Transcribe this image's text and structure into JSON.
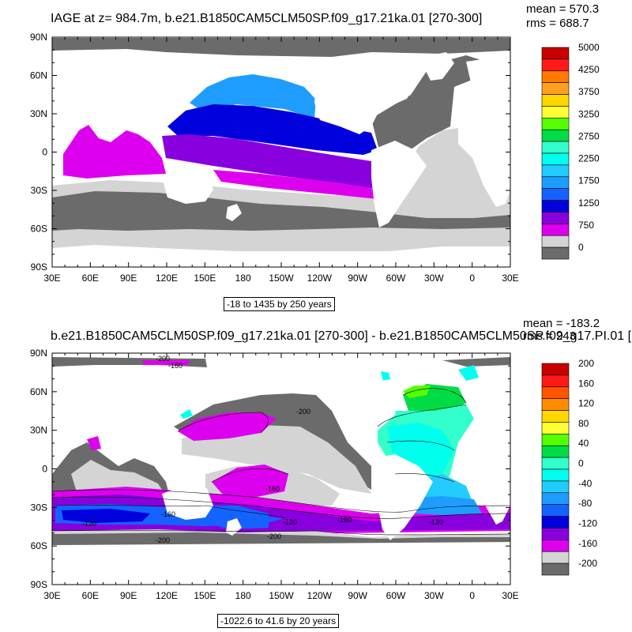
{
  "panels": [
    {
      "title": "IAGE at z= 984.7m, b.e21.B1850CAM5CLM50SP.f09_g17.21ka.01 [270-300]",
      "stats": {
        "mean_label": "mean = 570.3",
        "rms_label": "rms = 688.7"
      },
      "range_label": "-18 to 1435 by 250 years",
      "lat_ticks": [
        "90N",
        "60N",
        "30N",
        "0",
        "30S",
        "60S",
        "90S"
      ],
      "lon_ticks": [
        "30E",
        "60E",
        "90E",
        "120E",
        "150E",
        "180",
        "150W",
        "120W",
        "90W",
        "60W",
        "30W",
        "0",
        "30E"
      ],
      "colorbar": {
        "labels": [
          "5000",
          "4250",
          "3750",
          "3250",
          "2750",
          "2250",
          "1750",
          "1250",
          "750",
          "0"
        ],
        "colors": [
          "#c80000",
          "#ff1a1a",
          "#ff7a00",
          "#ffa020",
          "#ffd600",
          "#ffff33",
          "#55ff00",
          "#00dd44",
          "#33ffcc",
          "#00ffee",
          "#22ccff",
          "#1f9dff",
          "#1463ff",
          "#0000dd",
          "#8800dd",
          "#dd00ee",
          "#d4d4d4",
          "#6b6b6b"
        ]
      }
    },
    {
      "title": "b.e21.B1850CAM5CLM50SP.f09_g17.21ka.01 [270-300] - b.e21.B1850CAM5CLM50SP.f09_g17.PI.01 [",
      "stats": {
        "mean_label": "mean = -183.2",
        "rms_label": "rms = 243"
      },
      "range_label": "-1022.6 to 41.6 by 20 years",
      "lat_ticks": [
        "90N",
        "60N",
        "30N",
        "0",
        "30S",
        "60S",
        "90S"
      ],
      "lon_ticks": [
        "30E",
        "60E",
        "90E",
        "120E",
        "150E",
        "180",
        "150W",
        "120W",
        "90W",
        "60W",
        "30W",
        "0",
        "30E"
      ],
      "contour_labels": [
        "-200",
        "-160",
        "-120",
        "-160",
        "-200",
        "-160",
        "-200",
        "-120",
        "-120",
        "-160",
        "-200"
      ],
      "colorbar": {
        "labels": [
          "200",
          "160",
          "120",
          "80",
          "40",
          "0",
          "-40",
          "-80",
          "-120",
          "-160",
          "-200"
        ],
        "colors": [
          "#c80000",
          "#ff1a1a",
          "#ff5500",
          "#ff8c00",
          "#ffd600",
          "#ffff33",
          "#55ff00",
          "#00dd44",
          "#33ffcc",
          "#00ffee",
          "#22ccff",
          "#1f9dff",
          "#1463ff",
          "#0000dd",
          "#8800dd",
          "#dd00ee",
          "#d4d4d4",
          "#6b6b6b"
        ]
      }
    }
  ]
}
